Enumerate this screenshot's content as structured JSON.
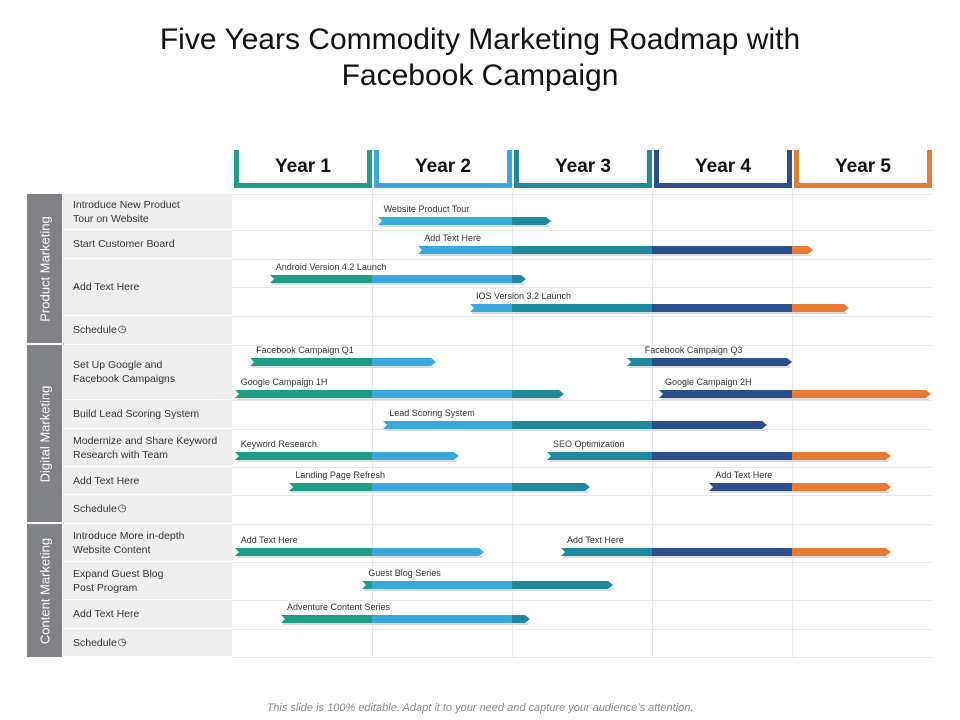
{
  "title": "Five Years Commodity Marketing Roadmap with\nFacebook Campaign",
  "years": [
    {
      "label": "Year 1",
      "color": "#1e9e86"
    },
    {
      "label": "Year 2",
      "color": "#3aa7dd"
    },
    {
      "label": "Year 3",
      "color": "#1f89a0"
    },
    {
      "label": "Year 4",
      "color": "#2c4f8c"
    },
    {
      "label": "Year 5",
      "color": "#e87a33"
    }
  ],
  "categories": [
    {
      "label": "Product Marketing"
    },
    {
      "label": "Digital Marketing"
    },
    {
      "label": "Content Marketing"
    }
  ],
  "rows": [
    {
      "label": "Introduce New Product\nTour on Website"
    },
    {
      "label": "Start Customer Board"
    },
    {
      "label": "Add Text Here"
    },
    {
      "label": "Schedule"
    },
    {
      "label": "Set Up Google and\nFacebook Campaigns"
    },
    {
      "label": "Build Lead Scoring System"
    },
    {
      "label": "Modernize and Share Keyword\nResearch with Team"
    },
    {
      "label": "Add Text Here"
    },
    {
      "label": "Schedule"
    },
    {
      "label": "Introduce More in-depth\nWebsite Content"
    },
    {
      "label": "Expand Guest Blog\nPost Program"
    },
    {
      "label": "Add Text Here"
    },
    {
      "label": "Schedule"
    }
  ],
  "schedule_icon": "clock-icon",
  "tasks": [
    {
      "label": "Website Product Tour",
      "start": 1.04,
      "end": 2.28
    },
    {
      "label": "Add Text Here",
      "start": 1.33,
      "end": 4.15
    },
    {
      "label": "Android Version 4.2 Launch",
      "start": 0.27,
      "end": 2.1
    },
    {
      "label": "IOS Version 3.2 Launch",
      "start": 1.7,
      "end": 4.41
    },
    {
      "label": "Facebook Campaign Q1",
      "start": 0.13,
      "end": 1.46
    },
    {
      "label": "Facebook Campaign Q3",
      "start": 2.82,
      "end": 4.0
    },
    {
      "label": "Google Campaign 1H",
      "start": 0.02,
      "end": 2.37
    },
    {
      "label": "Google Campaign 2H",
      "start": 3.05,
      "end": 4.99
    },
    {
      "label": "Lead Scoring System",
      "start": 1.08,
      "end": 3.82
    },
    {
      "label": "Keyword Research",
      "start": 0.02,
      "end": 1.62
    },
    {
      "label": "SEO Optimization",
      "start": 2.25,
      "end": 4.71
    },
    {
      "label": "Landing Page Refresh",
      "start": 0.41,
      "end": 2.56
    },
    {
      "label": "Add Text Here",
      "start": 3.41,
      "end": 4.71
    },
    {
      "label": "Add Text Here",
      "start": 0.02,
      "end": 1.8
    },
    {
      "label": "Add Text Here",
      "start": 2.35,
      "end": 4.71
    },
    {
      "label": "Guest Blog Series",
      "start": 0.93,
      "end": 2.72
    },
    {
      "label": "Adventure Content Series",
      "start": 0.35,
      "end": 2.13
    }
  ],
  "footer": "This slide is 100% editable. Adapt it to your need and capture your audience’s attention."
}
